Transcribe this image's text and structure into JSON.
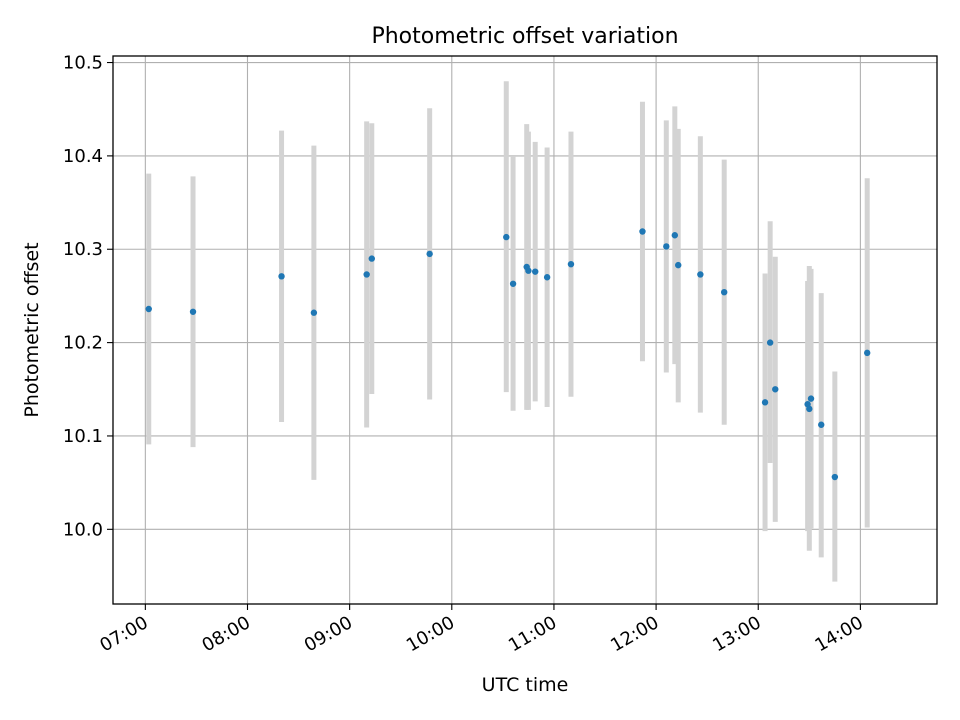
{
  "chart_data": {
    "type": "scatter",
    "title": "Photometric offset variation",
    "xlabel": "UTC time",
    "ylabel": "Photometric offset",
    "grid": true,
    "xlim": [
      "06:41",
      "14:45"
    ],
    "ylim": [
      9.92,
      10.507
    ],
    "x_ticks": [
      "07:00",
      "08:00",
      "09:00",
      "10:00",
      "11:00",
      "12:00",
      "13:00",
      "14:00"
    ],
    "y_ticks": [
      "10.0",
      "10.1",
      "10.2",
      "10.3",
      "10.4",
      "10.5"
    ],
    "colors": {
      "point": "#1f77b4",
      "errorbar": "#d3d3d3",
      "grid": "#b0b0b0"
    },
    "points": [
      {
        "x": "07:02",
        "y": 10.236,
        "low": 10.091,
        "high": 10.381
      },
      {
        "x": "07:28",
        "y": 10.233,
        "low": 10.088,
        "high": 10.378
      },
      {
        "x": "08:20",
        "y": 10.271,
        "low": 10.115,
        "high": 10.427
      },
      {
        "x": "08:39",
        "y": 10.232,
        "low": 10.053,
        "high": 10.411
      },
      {
        "x": "09:10",
        "y": 10.273,
        "low": 10.109,
        "high": 10.437
      },
      {
        "x": "09:13",
        "y": 10.29,
        "low": 10.145,
        "high": 10.435
      },
      {
        "x": "09:47",
        "y": 10.295,
        "low": 10.139,
        "high": 10.451
      },
      {
        "x": "10:32",
        "y": 10.313,
        "low": 10.147,
        "high": 10.48
      },
      {
        "x": "10:36",
        "y": 10.263,
        "low": 10.127,
        "high": 10.399
      },
      {
        "x": "10:44",
        "y": 10.281,
        "low": 10.128,
        "high": 10.434
      },
      {
        "x": "10:45",
        "y": 10.277,
        "low": 10.128,
        "high": 10.426
      },
      {
        "x": "10:49",
        "y": 10.276,
        "low": 10.137,
        "high": 10.415
      },
      {
        "x": "10:56",
        "y": 10.27,
        "low": 10.131,
        "high": 10.409
      },
      {
        "x": "11:10",
        "y": 10.284,
        "low": 10.142,
        "high": 10.426
      },
      {
        "x": "11:52",
        "y": 10.319,
        "low": 10.18,
        "high": 10.458
      },
      {
        "x": "12:06",
        "y": 10.303,
        "low": 10.168,
        "high": 10.438
      },
      {
        "x": "12:11",
        "y": 10.315,
        "low": 10.177,
        "high": 10.453
      },
      {
        "x": "12:13",
        "y": 10.283,
        "low": 10.136,
        "high": 10.429
      },
      {
        "x": "12:26",
        "y": 10.273,
        "low": 10.125,
        "high": 10.421
      },
      {
        "x": "12:40",
        "y": 10.254,
        "low": 10.112,
        "high": 10.396
      },
      {
        "x": "13:04",
        "y": 10.136,
        "low": 9.998,
        "high": 10.274
      },
      {
        "x": "13:07",
        "y": 10.2,
        "low": 10.071,
        "high": 10.33
      },
      {
        "x": "13:10",
        "y": 10.15,
        "low": 10.008,
        "high": 10.292
      },
      {
        "x": "13:29",
        "y": 10.134,
        "low": 9.998,
        "high": 10.266
      },
      {
        "x": "13:30",
        "y": 10.129,
        "low": 9.977,
        "high": 10.282
      },
      {
        "x": "13:31",
        "y": 10.14,
        "low": 10.001,
        "high": 10.279
      },
      {
        "x": "13:37",
        "y": 10.112,
        "low": 9.97,
        "high": 10.253
      },
      {
        "x": "13:45",
        "y": 10.056,
        "low": 9.944,
        "high": 10.169
      },
      {
        "x": "14:04",
        "y": 10.189,
        "low": 10.002,
        "high": 10.376
      }
    ]
  }
}
